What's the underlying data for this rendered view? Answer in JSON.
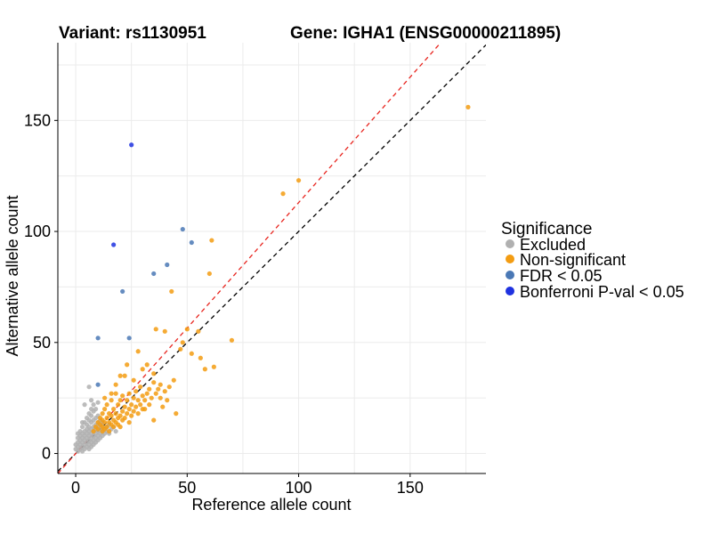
{
  "chart_data": {
    "type": "scatter",
    "title_left": "Variant: rs1130951",
    "title_right": "Gene: IGHA1 (ENSG00000211895)",
    "xlabel": "Reference allele count",
    "ylabel": "Alternative allele count",
    "xlim": [
      -8,
      184
    ],
    "ylim": [
      -9,
      185
    ],
    "xticks": [
      0,
      50,
      100,
      150
    ],
    "yticks": [
      0,
      50,
      100,
      150
    ],
    "grid": true,
    "legend_position": "right",
    "legend": {
      "title": "Significance",
      "entries": [
        {
          "label": "Excluded",
          "color": "#b0b0b0"
        },
        {
          "label": "Non-significant",
          "color": "#f39c12"
        },
        {
          "label": "FDR < 0.05",
          "color": "#4a78b5"
        },
        {
          "label": "Bonferroni P-val < 0.05",
          "color": "#1f32e0"
        }
      ]
    },
    "reference_lines": [
      {
        "name": "equal-ratio",
        "slope": 1.0,
        "intercept": 0,
        "color": "#000000"
      },
      {
        "name": "fitted-ratio",
        "slope": 1.13,
        "intercept": 0,
        "color": "#e8251f"
      }
    ],
    "series": [
      {
        "name": "Excluded",
        "color": "#b0b0b0",
        "points": [
          [
            1,
            1
          ],
          [
            1,
            3
          ],
          [
            1,
            5
          ],
          [
            2,
            2
          ],
          [
            2,
            4
          ],
          [
            2,
            6
          ],
          [
            2,
            8
          ],
          [
            3,
            1
          ],
          [
            3,
            3
          ],
          [
            3,
            5
          ],
          [
            3,
            7
          ],
          [
            3,
            9
          ],
          [
            3,
            12
          ],
          [
            4,
            2
          ],
          [
            4,
            4
          ],
          [
            4,
            6
          ],
          [
            4,
            8
          ],
          [
            4,
            10
          ],
          [
            4,
            14
          ],
          [
            5,
            3
          ],
          [
            5,
            5
          ],
          [
            5,
            7
          ],
          [
            5,
            9
          ],
          [
            5,
            11
          ],
          [
            5,
            13
          ],
          [
            5,
            16
          ],
          [
            6,
            2
          ],
          [
            6,
            4
          ],
          [
            6,
            6
          ],
          [
            6,
            8
          ],
          [
            6,
            10
          ],
          [
            6,
            12
          ],
          [
            6,
            15
          ],
          [
            6,
            18
          ],
          [
            7,
            3
          ],
          [
            7,
            5
          ],
          [
            7,
            7
          ],
          [
            7,
            9
          ],
          [
            7,
            11
          ],
          [
            7,
            14
          ],
          [
            7,
            17
          ],
          [
            7,
            20
          ],
          [
            7,
            24
          ],
          [
            8,
            4
          ],
          [
            8,
            6
          ],
          [
            8,
            8
          ],
          [
            8,
            10
          ],
          [
            8,
            12
          ],
          [
            8,
            15
          ],
          [
            8,
            19
          ],
          [
            8,
            22
          ],
          [
            9,
            5
          ],
          [
            9,
            7
          ],
          [
            9,
            9
          ],
          [
            9,
            11
          ],
          [
            9,
            13
          ],
          [
            9,
            16
          ],
          [
            9,
            20
          ],
          [
            10,
            6
          ],
          [
            10,
            8
          ],
          [
            10,
            10
          ],
          [
            10,
            12
          ],
          [
            10,
            14
          ],
          [
            10,
            17
          ],
          [
            10,
            23
          ],
          [
            11,
            7
          ],
          [
            11,
            9
          ],
          [
            11,
            11
          ],
          [
            11,
            13
          ],
          [
            11,
            15
          ],
          [
            12,
            8
          ],
          [
            12,
            10
          ],
          [
            12,
            12
          ],
          [
            12,
            14
          ],
          [
            13,
            9
          ],
          [
            13,
            11
          ],
          [
            14,
            10
          ],
          [
            14,
            12
          ],
          [
            15,
            9
          ],
          [
            15,
            13
          ],
          [
            16,
            11
          ],
          [
            17,
            12
          ],
          [
            18,
            10
          ],
          [
            6,
            30
          ],
          [
            4,
            22
          ],
          [
            2,
            10
          ],
          [
            1,
            7
          ],
          [
            3,
            14
          ],
          [
            0,
            2
          ],
          [
            0,
            4
          ],
          [
            1,
            9
          ]
        ]
      },
      {
        "name": "Non-significant",
        "color": "#f39c12",
        "points": [
          [
            8,
            10
          ],
          [
            9,
            12
          ],
          [
            10,
            11
          ],
          [
            10,
            14
          ],
          [
            11,
            13
          ],
          [
            11,
            16
          ],
          [
            12,
            10
          ],
          [
            12,
            12
          ],
          [
            12,
            15
          ],
          [
            12,
            18
          ],
          [
            13,
            11
          ],
          [
            13,
            14
          ],
          [
            13,
            20
          ],
          [
            14,
            12
          ],
          [
            14,
            16
          ],
          [
            14,
            22
          ],
          [
            15,
            10
          ],
          [
            15,
            14
          ],
          [
            15,
            18
          ],
          [
            16,
            13
          ],
          [
            16,
            17
          ],
          [
            16,
            24
          ],
          [
            17,
            12
          ],
          [
            17,
            15
          ],
          [
            17,
            20
          ],
          [
            18,
            14
          ],
          [
            18,
            18
          ],
          [
            18,
            27
          ],
          [
            19,
            13
          ],
          [
            19,
            16
          ],
          [
            19,
            22
          ],
          [
            20,
            12
          ],
          [
            20,
            17
          ],
          [
            20,
            24
          ],
          [
            21,
            15
          ],
          [
            21,
            19
          ],
          [
            21,
            26
          ],
          [
            22,
            16
          ],
          [
            22,
            21
          ],
          [
            23,
            18
          ],
          [
            23,
            24
          ],
          [
            24,
            14
          ],
          [
            24,
            20
          ],
          [
            24,
            27
          ],
          [
            25,
            17
          ],
          [
            25,
            22
          ],
          [
            26,
            19
          ],
          [
            26,
            25
          ],
          [
            27,
            21
          ],
          [
            27,
            28
          ],
          [
            28,
            18
          ],
          [
            28,
            24
          ],
          [
            29,
            22
          ],
          [
            29,
            30
          ],
          [
            30,
            20
          ],
          [
            30,
            26
          ],
          [
            31,
            24
          ],
          [
            32,
            27
          ],
          [
            33,
            22
          ],
          [
            33,
            29
          ],
          [
            34,
            25
          ],
          [
            35,
            32
          ],
          [
            36,
            27
          ],
          [
            37,
            29
          ],
          [
            38,
            25
          ],
          [
            38,
            31
          ],
          [
            40,
            28
          ],
          [
            41,
            24
          ],
          [
            42,
            30
          ],
          [
            44,
            33
          ],
          [
            30,
            38
          ],
          [
            32,
            40
          ],
          [
            35,
            36
          ],
          [
            40,
            55
          ],
          [
            48,
            50
          ],
          [
            50,
            56
          ],
          [
            55,
            55
          ],
          [
            56,
            43
          ],
          [
            58,
            38
          ],
          [
            62,
            39
          ],
          [
            70,
            51
          ],
          [
            60,
            81
          ],
          [
            61,
            96
          ],
          [
            43,
            73
          ],
          [
            93,
            117
          ],
          [
            100,
            123
          ],
          [
            176,
            156
          ],
          [
            36,
            56
          ],
          [
            28,
            46
          ],
          [
            22,
            35
          ],
          [
            52,
            45
          ],
          [
            47,
            47
          ],
          [
            23,
            40
          ],
          [
            26,
            33
          ],
          [
            31,
            20
          ],
          [
            45,
            18
          ],
          [
            35,
            15
          ],
          [
            39,
            21
          ],
          [
            16,
            27
          ],
          [
            13,
            25
          ],
          [
            18,
            31
          ],
          [
            20,
            35
          ]
        ]
      },
      {
        "name": "FDR < 0.05",
        "color": "#4a78b5",
        "points": [
          [
            10,
            31
          ],
          [
            10,
            52
          ],
          [
            24,
            52
          ],
          [
            21,
            73
          ],
          [
            35,
            81
          ],
          [
            41,
            85
          ],
          [
            48,
            101
          ],
          [
            52,
            95
          ]
        ]
      },
      {
        "name": "Bonferroni P-val < 0.05",
        "color": "#1f32e0",
        "points": [
          [
            17,
            94
          ],
          [
            25,
            139
          ]
        ]
      }
    ]
  }
}
